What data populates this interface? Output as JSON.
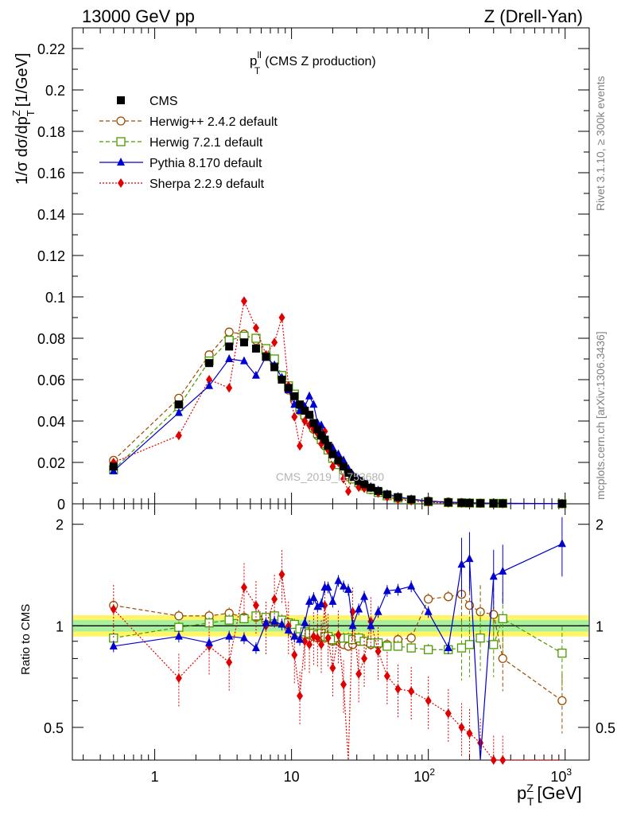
{
  "header": {
    "left": "13000 GeV pp",
    "right": "Z (Drell-Yan)"
  },
  "plot_title": {
    "base": "p",
    "sup": "ll",
    "sub": "T",
    "rest": "(CMS Z production)"
  },
  "side_text": {
    "rivet": "Rivet 3.1.10, ≥ 300k events",
    "mcplots": "mcplots.cern.ch [arXiv:1306.3436]"
  },
  "watermark": "CMS_2019_I1753680",
  "axes": {
    "main_ylabel": "1/σ dσ/dp",
    "main_ylabel_sub": "T",
    "main_ylabel_sup": "Z",
    "main_ylabel_unit": "[1/GeV]",
    "ratio_ylabel": "Ratio to CMS",
    "xlabel_base": "p",
    "xlabel_sub": "T",
    "xlabel_sup": "Z",
    "xlabel_unit": "[GeV]"
  },
  "legend": [
    {
      "key": "cms",
      "label": "CMS"
    },
    {
      "key": "herwigpp",
      "label": "Herwig++ 2.4.2 default"
    },
    {
      "key": "herwig7",
      "label": "Herwig 7.2.1 default"
    },
    {
      "key": "pythia",
      "label": "Pythia 8.170 default"
    },
    {
      "key": "sherpa",
      "label": "Sherpa 2.2.9 default"
    }
  ],
  "chart_data": {
    "type": "scatter",
    "x_scale": "log",
    "xlim": [
      0.25,
      1500
    ],
    "ylim_main": [
      0,
      0.23
    ],
    "ylim_ratio": [
      0.4,
      2.3
    ],
    "x_ticks": [
      {
        "value": 1,
        "label": "1"
      },
      {
        "value": 10,
        "label": "10"
      },
      {
        "value": 100,
        "label": "10",
        "sup": "2"
      },
      {
        "value": 1000,
        "label": "10",
        "sup": "3"
      }
    ],
    "y_ticks_main": [
      "0",
      "0.02",
      "0.04",
      "0.06",
      "0.08",
      "0.1",
      "0.12",
      "0.14",
      "0.16",
      "0.18",
      "0.2",
      "0.22"
    ],
    "y_ticks_ratio": [
      "0.5",
      "1",
      "2"
    ],
    "x": [
      0.5,
      1.5,
      2.5,
      3.5,
      4.5,
      5.5,
      6.5,
      7.5,
      8.5,
      9.5,
      10.5,
      11.5,
      12.5,
      13.5,
      14.5,
      15.5,
      16.5,
      17.5,
      18.5,
      20,
      22,
      24,
      26,
      28,
      31,
      34,
      38,
      43,
      50,
      60,
      75,
      100,
      140,
      175,
      200,
      240,
      300,
      350,
      950
    ],
    "series": [
      {
        "key": "cms",
        "name": "CMS",
        "color": "#000000",
        "marker": "square-filled",
        "line": "none",
        "values": [
          0.018,
          0.048,
          0.068,
          0.076,
          0.078,
          0.075,
          0.071,
          0.066,
          0.06,
          0.056,
          0.052,
          0.048,
          0.045,
          0.043,
          0.039,
          0.036,
          0.033,
          0.031,
          0.028,
          0.024,
          0.021,
          0.018,
          0.015,
          0.013,
          0.011,
          0.0095,
          0.0078,
          0.0062,
          0.0045,
          0.0032,
          0.0021,
          0.0012,
          0.0007,
          0.0005,
          0.0004,
          0.0003,
          0.00025,
          0.0002,
          5e-05
        ]
      },
      {
        "key": "herwigpp",
        "name": "Herwig++ 2.4.2 default",
        "color": "#9a4d00",
        "marker": "circle-open",
        "line": "dashed",
        "values": [
          0.021,
          0.051,
          0.072,
          0.083,
          0.082,
          0.079,
          0.073,
          0.068,
          0.061,
          0.055,
          0.05,
          0.045,
          0.042,
          0.04,
          0.036,
          0.033,
          0.031,
          0.028,
          0.026,
          0.022,
          0.019,
          0.016,
          0.013,
          0.012,
          0.01,
          0.0085,
          0.0068,
          0.0055,
          0.004,
          0.0029,
          0.0019,
          0.0014,
          0.0009,
          0.0006,
          0.00045,
          0.00035,
          0.00028,
          0.00016,
          3e-05
        ],
        "ratio": [
          1.15,
          1.07,
          1.07,
          1.09,
          1.06,
          1.06,
          1.03,
          1.03,
          1.02,
          0.99,
          0.97,
          0.95,
          0.94,
          0.94,
          0.93,
          0.92,
          0.93,
          0.92,
          0.93,
          0.9,
          0.9,
          0.88,
          0.87,
          0.88,
          0.9,
          0.9,
          0.88,
          0.88,
          0.88,
          0.91,
          0.92,
          1.2,
          1.22,
          1.24,
          1.15,
          1.1,
          1.08,
          0.8,
          0.6
        ]
      },
      {
        "key": "herwig7",
        "name": "Herwig 7.2.1 default",
        "color": "#4c9a00",
        "marker": "square-open",
        "line": "dashed",
        "values": [
          0.0165,
          0.047,
          0.069,
          0.079,
          0.081,
          0.08,
          0.075,
          0.07,
          0.062,
          0.057,
          0.053,
          0.047,
          0.043,
          0.041,
          0.037,
          0.034,
          0.031,
          0.029,
          0.026,
          0.022,
          0.019,
          0.0165,
          0.014,
          0.012,
          0.0102,
          0.0086,
          0.007,
          0.0055,
          0.0039,
          0.0028,
          0.0018,
          0.001,
          0.0006,
          0.00043,
          0.00036,
          0.00028,
          0.00022,
          0.00021,
          4e-05
        ],
        "ratio": [
          0.92,
          0.99,
          1.02,
          1.04,
          1.05,
          1.07,
          1.06,
          1.07,
          1.04,
          1.02,
          1.01,
          0.98,
          0.96,
          0.95,
          0.95,
          0.94,
          0.95,
          0.93,
          0.93,
          0.91,
          0.92,
          0.92,
          0.92,
          0.91,
          0.92,
          0.9,
          0.89,
          0.89,
          0.87,
          0.87,
          0.86,
          0.85,
          0.85,
          0.86,
          0.88,
          0.92,
          0.88,
          1.05,
          0.83
        ]
      },
      {
        "key": "pythia",
        "name": "Pythia 8.170 default",
        "color": "#0000d0",
        "marker": "triangle-filled",
        "line": "solid",
        "values": [
          0.0158,
          0.044,
          0.057,
          0.07,
          0.069,
          0.062,
          0.071,
          0.067,
          0.061,
          0.055,
          0.048,
          0.045,
          0.047,
          0.052,
          0.048,
          0.039,
          0.038,
          0.032,
          0.029,
          0.027,
          0.024,
          0.021,
          0.017,
          0.014,
          0.012,
          0.0102,
          0.0082,
          0.0065,
          0.0048,
          0.0034,
          0.0023,
          0.0013,
          0.0008,
          0.0006,
          0.0005,
          0.00035,
          0.0003,
          0.00025,
          9e-05
        ],
        "ratio": [
          0.87,
          0.93,
          0.89,
          0.93,
          0.92,
          0.86,
          1.02,
          1.03,
          1.01,
          0.97,
          0.93,
          0.91,
          1.02,
          1.18,
          1.21,
          1.14,
          1.16,
          1.3,
          1.3,
          1.18,
          1.36,
          1.31,
          1.28,
          1.0,
          1.12,
          1.22,
          1.0,
          1.1,
          1.27,
          1.28,
          1.31,
          1.1,
          0.86,
          1.52,
          1.58,
          0.3,
          1.4,
          1.45,
          1.75
        ]
      },
      {
        "key": "sherpa",
        "name": "Sherpa 2.2.9 default",
        "color": "#e00000",
        "marker": "diamond-filled",
        "line": "dotted",
        "values": [
          0.02,
          0.033,
          0.06,
          0.056,
          0.098,
          0.085,
          0.072,
          0.078,
          0.09,
          0.057,
          0.042,
          0.028,
          0.04,
          0.038,
          0.036,
          0.034,
          0.029,
          0.035,
          0.026,
          0.018,
          0.02,
          0.012,
          0.006,
          0.014,
          0.008,
          0.0075,
          0.008,
          0.0052,
          0.0032,
          0.0021,
          0.0014,
          0.0007,
          0.0004,
          0.0003,
          0.0002,
          0.0002,
          0.0001,
          0.0001,
          1e-05
        ],
        "ratio": [
          1.12,
          0.7,
          0.87,
          0.78,
          1.3,
          1.15,
          1.0,
          1.2,
          1.42,
          1.0,
          0.82,
          0.62,
          0.9,
          0.88,
          0.93,
          0.92,
          0.88,
          1.15,
          0.92,
          0.75,
          0.94,
          0.67,
          0.38,
          1.1,
          0.72,
          0.8,
          1.03,
          0.84,
          0.71,
          0.65,
          0.64,
          0.6,
          0.55,
          0.5,
          0.48,
          0.45,
          0.4,
          0.4,
          0.3
        ]
      }
    ]
  }
}
